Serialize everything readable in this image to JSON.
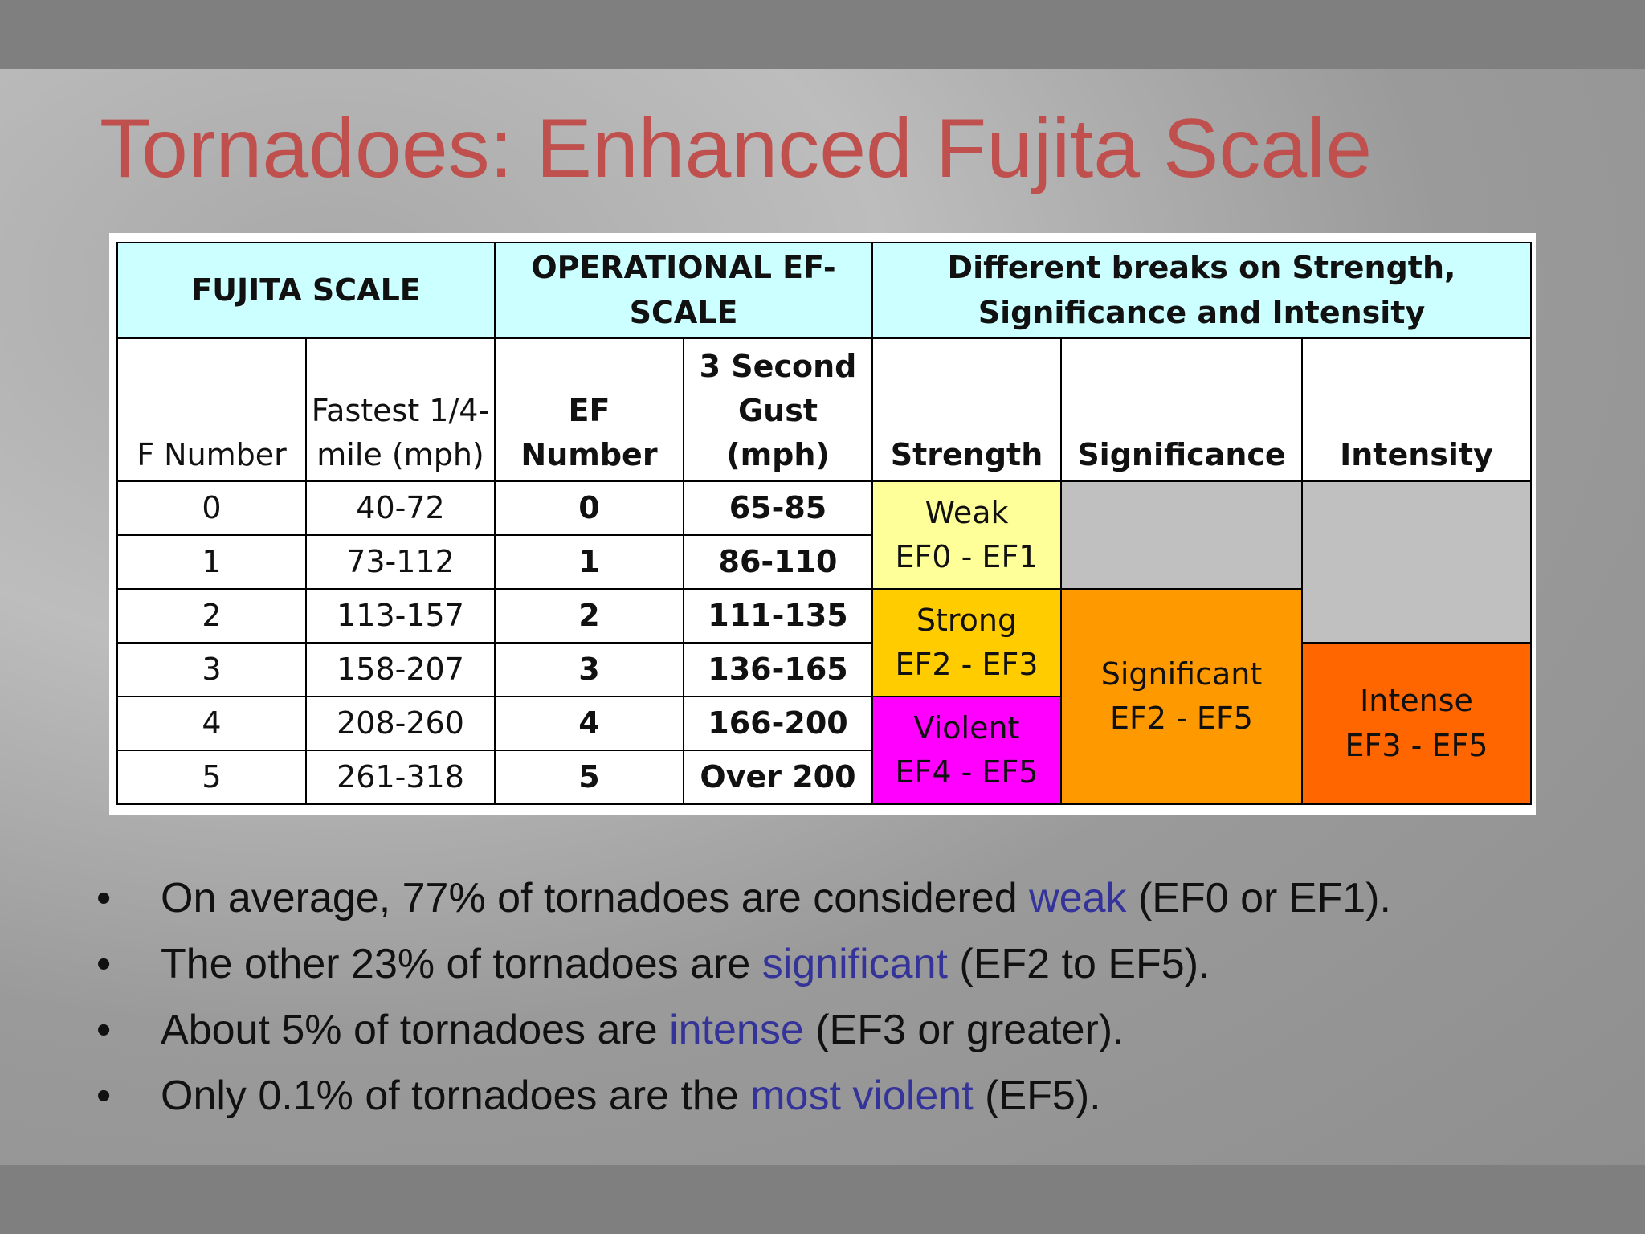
{
  "header": {
    "title": "Tornadoes: Enhanced Fujita Scale"
  },
  "table": {
    "header": [
      "FUJITA SCALE",
      "OPERATIONAL EF-SCALE",
      "Different breaks on Strength, Significance and Intensity"
    ],
    "subheader": [
      "F Number",
      "Fastest 1/4-mile (mph)",
      "EF Number",
      "3 Second Gust (mph)",
      "Strength",
      "Significance",
      "Intensity"
    ],
    "rows": [
      [
        "0",
        "40-72",
        "0",
        "65-85"
      ],
      [
        "1",
        "73-112",
        "1",
        "86-110"
      ],
      [
        "2",
        "113-157",
        "2",
        "111-135"
      ],
      [
        "3",
        "158-207",
        "3",
        "136-165"
      ],
      [
        "4",
        "208-260",
        "4",
        "166-200"
      ],
      [
        "5",
        "261-318",
        "5",
        "Over 200"
      ]
    ],
    "strength": [
      {
        "label": "Weak",
        "range": "EF0 - EF1"
      },
      {
        "label": "Strong",
        "range": "EF2 - EF3"
      },
      {
        "label": "Violent",
        "range": "EF4 - EF5"
      }
    ],
    "significance": {
      "label": "Significant",
      "range": "EF2 - EF5"
    },
    "intensity": {
      "label": "Intense",
      "range": "EF3 - EF5"
    }
  },
  "bullets": [
    {
      "before": "On average, 77% of tornadoes are considered ",
      "highlight": "weak",
      "after": " (EF0 or EF1)."
    },
    {
      "before": "The other 23% of tornadoes are ",
      "highlight": "significant",
      "after": " (EF2 to EF5)."
    },
    {
      "before": "About 5% of tornadoes are ",
      "highlight": "intense",
      "after": " (EF3 or greater)."
    },
    {
      "before": "Only 0.1% of tornadoes are the ",
      "highlight": "most violent",
      "after": " (EF5)."
    }
  ]
}
